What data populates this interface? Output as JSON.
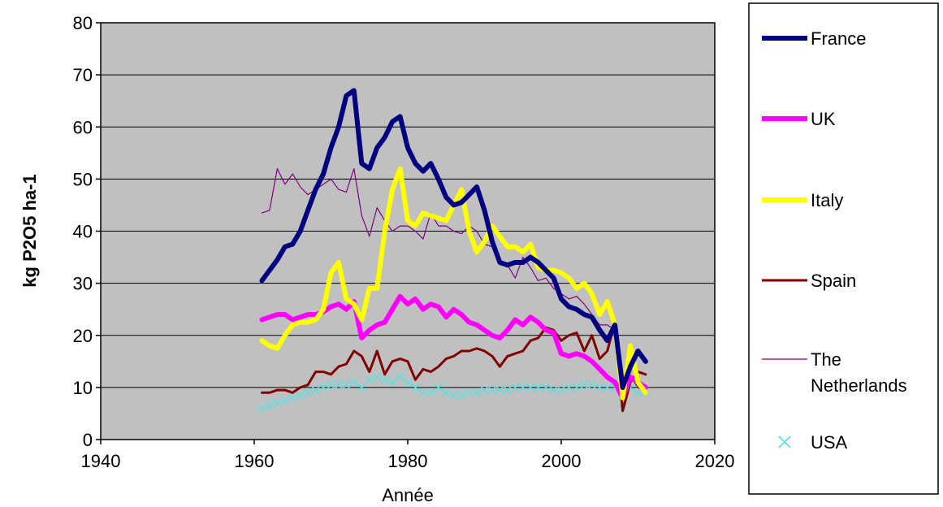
{
  "chart_data": {
    "type": "line",
    "title": "",
    "xlabel": "Année",
    "ylabel": "kg P2O5 ha-1",
    "xlim": [
      1940,
      2020
    ],
    "ylim": [
      0,
      80
    ],
    "xticks": [
      1940,
      1960,
      1980,
      2000,
      2020
    ],
    "yticks": [
      0,
      10,
      20,
      30,
      40,
      50,
      60,
      70,
      80
    ],
    "grid": "horizontal",
    "legend": "right",
    "background": "#c0c0c0",
    "series": [
      {
        "name": "France",
        "color": "#000080",
        "style": "thick",
        "x": [
          1961,
          1962,
          1963,
          1964,
          1965,
          1966,
          1967,
          1968,
          1969,
          1970,
          1971,
          1972,
          1973,
          1974,
          1975,
          1976,
          1977,
          1978,
          1979,
          1980,
          1981,
          1982,
          1983,
          1984,
          1985,
          1986,
          1987,
          1988,
          1989,
          1990,
          1991,
          1992,
          1993,
          1994,
          1995,
          1996,
          1997,
          1998,
          1999,
          2000,
          2001,
          2002,
          2003,
          2004,
          2005,
          2006,
          2007,
          2008,
          2009,
          2010,
          2011
        ],
        "y": [
          30.5,
          32.5,
          34.5,
          37,
          37.5,
          40,
          44,
          48,
          51,
          56,
          60,
          66,
          67,
          53,
          52,
          56,
          58,
          61,
          62,
          56,
          53,
          51.5,
          53,
          50,
          46.5,
          45,
          45.5,
          47,
          48.5,
          44,
          38,
          34,
          33.5,
          34,
          34,
          35,
          34,
          32.5,
          31,
          27,
          25.5,
          25,
          24,
          23.5,
          21,
          19,
          22,
          10,
          14,
          17,
          15
        ]
      },
      {
        "name": "UK",
        "color": "#ff00ff",
        "style": "thick",
        "x": [
          1961,
          1962,
          1963,
          1964,
          1965,
          1966,
          1967,
          1968,
          1969,
          1970,
          1971,
          1972,
          1973,
          1974,
          1975,
          1976,
          1977,
          1978,
          1979,
          1980,
          1981,
          1982,
          1983,
          1984,
          1985,
          1986,
          1987,
          1988,
          1989,
          1990,
          1991,
          1992,
          1993,
          1994,
          1995,
          1996,
          1997,
          1998,
          1999,
          2000,
          2001,
          2002,
          2003,
          2004,
          2005,
          2006,
          2007,
          2008,
          2009,
          2010,
          2011
        ],
        "y": [
          23,
          23.5,
          24,
          24,
          23,
          23.5,
          24,
          24,
          24.5,
          25.5,
          26,
          25,
          26.5,
          19.5,
          21,
          22,
          22.5,
          25,
          27.5,
          26,
          27,
          25,
          26,
          25.5,
          23.5,
          25,
          24,
          22.5,
          22,
          21,
          20,
          19.5,
          21,
          23,
          22,
          23.5,
          22.5,
          21,
          20.5,
          16.5,
          16,
          16.5,
          16,
          15,
          13.5,
          12,
          11,
          8,
          12,
          11,
          10
        ]
      },
      {
        "name": "Italy",
        "color": "#ffff00",
        "style": "thick",
        "x": [
          1961,
          1962,
          1963,
          1964,
          1965,
          1966,
          1967,
          1968,
          1969,
          1970,
          1971,
          1972,
          1973,
          1974,
          1975,
          1976,
          1977,
          1978,
          1979,
          1980,
          1981,
          1982,
          1983,
          1984,
          1985,
          1986,
          1987,
          1988,
          1989,
          1990,
          1991,
          1992,
          1993,
          1994,
          1995,
          1996,
          1997,
          1998,
          1999,
          2000,
          2001,
          2002,
          2003,
          2004,
          2005,
          2006,
          2007,
          2008,
          2009,
          2010,
          2011
        ],
        "y": [
          19,
          18,
          17.5,
          20,
          22,
          22.5,
          22.5,
          23,
          25,
          32,
          34,
          27,
          26,
          23,
          29,
          29,
          40,
          48,
          52,
          42,
          41,
          43.5,
          43,
          42.5,
          42,
          45,
          48,
          40,
          36,
          38,
          41,
          39,
          37,
          37,
          36,
          37.5,
          33,
          32.5,
          32.5,
          32,
          31,
          29,
          30,
          28,
          24,
          26.5,
          22,
          8,
          18,
          11,
          9
        ]
      },
      {
        "name": "Spain",
        "color": "#800000",
        "style": "medium",
        "x": [
          1961,
          1962,
          1963,
          1964,
          1965,
          1966,
          1967,
          1968,
          1969,
          1970,
          1971,
          1972,
          1973,
          1974,
          1975,
          1976,
          1977,
          1978,
          1979,
          1980,
          1981,
          1982,
          1983,
          1984,
          1985,
          1986,
          1987,
          1988,
          1989,
          1990,
          1991,
          1992,
          1993,
          1994,
          1995,
          1996,
          1997,
          1998,
          1999,
          2000,
          2001,
          2002,
          2003,
          2004,
          2005,
          2006,
          2007,
          2008,
          2009,
          2010,
          2011
        ],
        "y": [
          9,
          9,
          9.5,
          9.5,
          9,
          10,
          10.5,
          13,
          13,
          12.5,
          14,
          14.5,
          17,
          16,
          13,
          17,
          12.5,
          15,
          15.5,
          15,
          11.5,
          13.5,
          13,
          14,
          15.5,
          16,
          17,
          17,
          17.5,
          17,
          16,
          14,
          16,
          16.5,
          17,
          19,
          19.5,
          21.5,
          21,
          19,
          20,
          20.5,
          17,
          20,
          15.5,
          17,
          22.5,
          5.5,
          11,
          13,
          12.5
        ]
      },
      {
        "name": "The Netherlands",
        "color": "#800080",
        "style": "thin",
        "x": [
          1961,
          1962,
          1963,
          1964,
          1965,
          1966,
          1967,
          1968,
          1969,
          1970,
          1971,
          1972,
          1973,
          1974,
          1975,
          1976,
          1977,
          1978,
          1979,
          1980,
          1981,
          1982,
          1983,
          1984,
          1985,
          1986,
          1987,
          1988,
          1989,
          1990,
          1991,
          1992,
          1993,
          1994,
          1995,
          1996,
          1997,
          1998,
          1999,
          2000,
          2001,
          2002,
          2003,
          2004,
          2005,
          2006,
          2007,
          2008,
          2009,
          2010,
          2011
        ],
        "y": [
          43.5,
          44,
          52,
          49,
          51,
          48.5,
          47,
          48,
          49,
          50,
          48,
          47.5,
          52,
          43,
          39,
          44.5,
          42,
          40,
          41,
          41,
          40,
          38.5,
          43.5,
          41,
          41,
          40,
          39.5,
          41,
          40,
          37.5,
          37,
          34,
          33.5,
          31,
          35,
          33,
          30.5,
          31,
          29,
          28,
          27,
          27.5,
          26,
          24,
          22,
          22,
          21,
          7.5,
          12,
          10,
          9
        ]
      },
      {
        "name": "USA",
        "color": "#66dddd",
        "style": "marker",
        "x": [
          1961,
          1962,
          1963,
          1964,
          1965,
          1966,
          1967,
          1968,
          1969,
          1970,
          1971,
          1972,
          1973,
          1974,
          1975,
          1976,
          1977,
          1978,
          1979,
          1980,
          1981,
          1982,
          1983,
          1984,
          1985,
          1986,
          1987,
          1988,
          1989,
          1990,
          1991,
          1992,
          1993,
          1994,
          1995,
          1996,
          1997,
          1998,
          1999,
          2000,
          2001,
          2002,
          2003,
          2004,
          2005,
          2006,
          2007,
          2008,
          2009,
          2010,
          2011
        ],
        "y": [
          6,
          6.5,
          7,
          7.5,
          8,
          8.5,
          9,
          9.5,
          10,
          10.5,
          10.5,
          10.5,
          11,
          10,
          11.5,
          12,
          11.5,
          11,
          12,
          11,
          10,
          9,
          9,
          10,
          9,
          8.5,
          8.5,
          9,
          9,
          9.5,
          9.5,
          9.5,
          9.5,
          10,
          10,
          10,
          10,
          10,
          9.5,
          9.5,
          10,
          10,
          10.5,
          10.5,
          10,
          10,
          10,
          7,
          10,
          9,
          9
        ]
      }
    ]
  }
}
